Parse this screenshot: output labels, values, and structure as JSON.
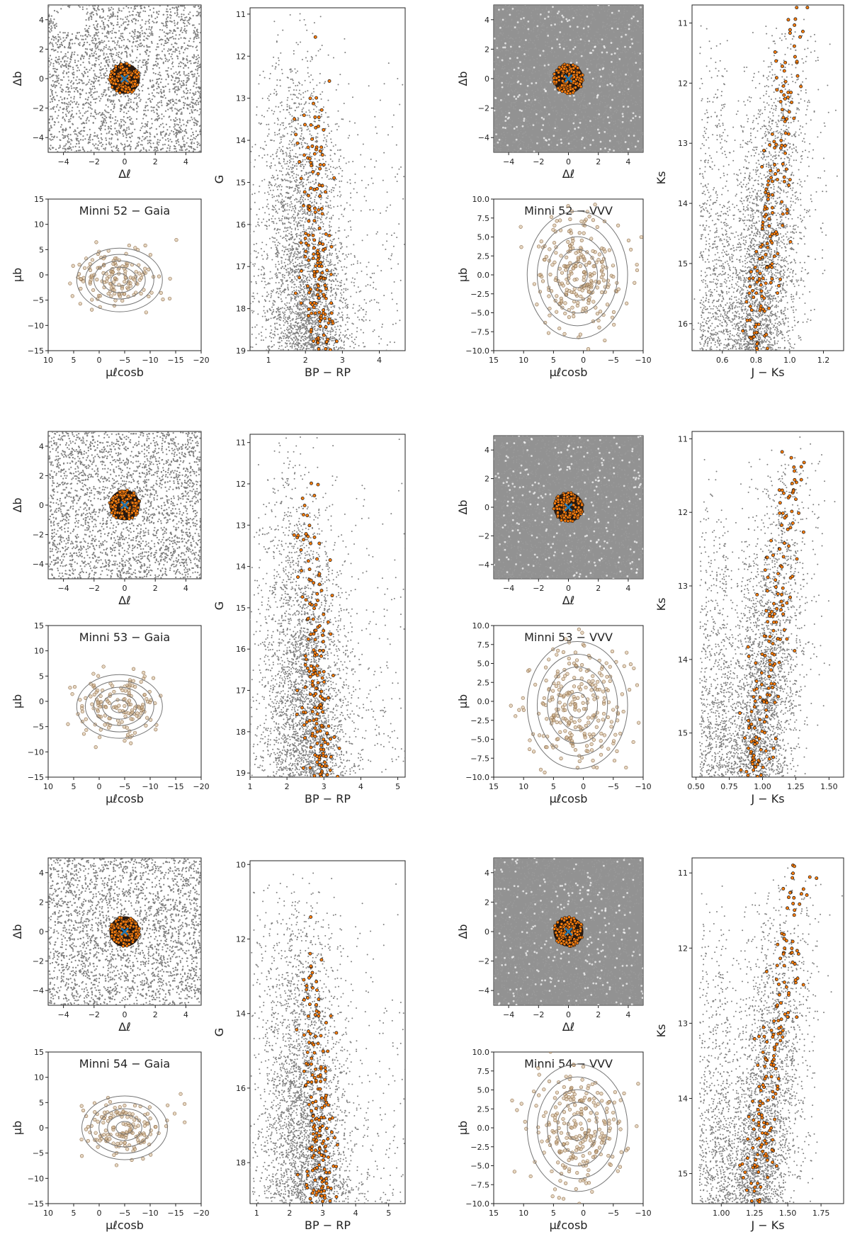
{
  "figure": {
    "colors": {
      "field": "#7f7f7f",
      "member_fill": "#ff7f0e",
      "member_edge": "#111111",
      "pm_member": "#d2b48c",
      "center": "#1f77b4",
      "contour": "#777777",
      "frame": "#222222"
    }
  },
  "chart_data": [
    {
      "type": "scatter",
      "name": "spatial-gaia-52",
      "title": "",
      "xlabel": "Δℓ",
      "ylabel": "Δb",
      "xlim": [
        -5,
        5
      ],
      "ylim": [
        -5,
        5
      ],
      "xticks": [
        -4,
        -2,
        0,
        2,
        4
      ],
      "yticks": [
        -4,
        -2,
        0,
        2,
        4
      ],
      "field_density": "sparse",
      "member_radius": 1.0,
      "center": [
        0,
        0
      ]
    },
    {
      "type": "scatter",
      "name": "pm-gaia-52",
      "title": "Minni 52 − Gaia",
      "xlabel": "μℓcosb",
      "ylabel": "μb",
      "xlim": [
        10,
        -20
      ],
      "ylim": [
        -15,
        15
      ],
      "xticks": [
        10,
        5,
        0,
        -5,
        -10,
        -15,
        -20
      ],
      "yticks": [
        -15,
        -10,
        -5,
        0,
        5,
        10,
        15
      ],
      "centroid": [
        -4,
        -1
      ],
      "spread": [
        4,
        3
      ]
    },
    {
      "type": "scatter",
      "name": "cmd-gaia-52",
      "title": "",
      "xlabel": "BP − RP",
      "ylabel": "G",
      "xlim": [
        0.5,
        4.7
      ],
      "ylim": [
        19,
        10.85
      ],
      "xticks": [
        1,
        2,
        3,
        4
      ],
      "yticks": [
        11,
        12,
        13,
        14,
        15,
        16,
        17,
        18,
        19
      ]
    },
    {
      "type": "scatter",
      "name": "spatial-vvv-52",
      "title": "",
      "xlabel": "Δℓ",
      "ylabel": "Δb",
      "xlim": [
        -5,
        5
      ],
      "ylim": [
        -5,
        5
      ],
      "xticks": [
        -4,
        -2,
        0,
        2,
        4
      ],
      "yticks": [
        -4,
        -2,
        0,
        2,
        4
      ],
      "field_density": "dense",
      "member_radius": 1.0,
      "center": [
        0,
        0
      ]
    },
    {
      "type": "scatter",
      "name": "pm-vvv-52",
      "title": "Minni 52 − VVV",
      "xlabel": "μℓcosb",
      "ylabel": "μb",
      "xlim": [
        15,
        -10
      ],
      "ylim": [
        -10,
        10
      ],
      "xticks": [
        15,
        10,
        5,
        0,
        -5,
        -10
      ],
      "yticks": [
        -10.0,
        -7.5,
        -5.0,
        -2.5,
        0.0,
        2.5,
        5.0,
        7.5,
        10.0
      ],
      "centroid": [
        1,
        0
      ],
      "spread": [
        4,
        4
      ]
    },
    {
      "type": "scatter",
      "name": "cmd-vvv-52",
      "title": "",
      "xlabel": "J − Ks",
      "ylabel": "Ks",
      "xlim": [
        0.42,
        1.32
      ],
      "ylim": [
        16.45,
        10.7
      ],
      "xticks": [
        0.6,
        0.8,
        1.0,
        1.2
      ],
      "yticks": [
        11,
        12,
        13,
        14,
        15,
        16
      ]
    },
    {
      "type": "scatter",
      "name": "spatial-gaia-53",
      "title": "",
      "xlabel": "Δℓ",
      "ylabel": "Δb",
      "xlim": [
        -5,
        5
      ],
      "ylim": [
        -5,
        5
      ],
      "xticks": [
        -4,
        -2,
        0,
        2,
        4
      ],
      "yticks": [
        -4,
        -2,
        0,
        2,
        4
      ],
      "field_density": "sparse",
      "member_radius": 1.0,
      "center": [
        0,
        0
      ]
    },
    {
      "type": "scatter",
      "name": "pm-gaia-53",
      "title": "Minni 53 − Gaia",
      "xlabel": "μℓcosb",
      "ylabel": "μb",
      "xlim": [
        10,
        -20
      ],
      "ylim": [
        -15,
        15
      ],
      "xticks": [
        10,
        5,
        0,
        -5,
        -10,
        -15,
        -20
      ],
      "yticks": [
        -15,
        -10,
        -5,
        0,
        5,
        10,
        15
      ],
      "centroid": [
        -4,
        -1
      ],
      "spread": [
        4,
        3
      ]
    },
    {
      "type": "scatter",
      "name": "cmd-gaia-53",
      "title": "",
      "xlabel": "BP − RP",
      "ylabel": "G",
      "xlim": [
        1.0,
        5.2
      ],
      "ylim": [
        19.1,
        10.8
      ],
      "xticks": [
        1,
        2,
        3,
        4,
        5
      ],
      "yticks": [
        11,
        12,
        13,
        14,
        15,
        16,
        17,
        18,
        19
      ]
    },
    {
      "type": "scatter",
      "name": "spatial-vvv-53",
      "title": "",
      "xlabel": "Δℓ",
      "ylabel": "Δb",
      "xlim": [
        -5,
        5
      ],
      "ylim": [
        -5,
        5
      ],
      "xticks": [
        -4,
        -2,
        0,
        2,
        4
      ],
      "yticks": [
        -4,
        -2,
        0,
        2,
        4
      ],
      "field_density": "dense",
      "member_radius": 1.0,
      "center": [
        0,
        0
      ]
    },
    {
      "type": "scatter",
      "name": "pm-vvv-53",
      "title": "Minni 53 − VVV",
      "xlabel": "μℓcosb",
      "ylabel": "μb",
      "xlim": [
        15,
        -10
      ],
      "ylim": [
        -10,
        10
      ],
      "xticks": [
        15,
        10,
        5,
        0,
        -5,
        -10
      ],
      "yticks": [
        -10.0,
        -7.5,
        -5.0,
        -2.5,
        0.0,
        2.5,
        5.0,
        7.5,
        10.0
      ],
      "centroid": [
        1,
        -0.5
      ],
      "spread": [
        4,
        4
      ]
    },
    {
      "type": "scatter",
      "name": "cmd-vvv-53",
      "title": "",
      "xlabel": "J − Ks",
      "ylabel": "Ks",
      "xlim": [
        0.47,
        1.61
      ],
      "ylim": [
        15.6,
        10.9
      ],
      "xticks": [
        0.5,
        0.75,
        1.0,
        1.25,
        1.5
      ],
      "yticks": [
        11,
        12,
        13,
        14,
        15
      ]
    },
    {
      "type": "scatter",
      "name": "spatial-gaia-54",
      "title": "",
      "xlabel": "Δℓ",
      "ylabel": "Δb",
      "xlim": [
        -5,
        5
      ],
      "ylim": [
        -5,
        5
      ],
      "xticks": [
        -4,
        -2,
        0,
        2,
        4
      ],
      "yticks": [
        -4,
        -2,
        0,
        2,
        4
      ],
      "field_density": "sparse",
      "member_radius": 1.0,
      "center": [
        0,
        0
      ]
    },
    {
      "type": "scatter",
      "name": "pm-gaia-54",
      "title": "Minni 54 − Gaia",
      "xlabel": "μℓcosb",
      "ylabel": "μb",
      "xlim": [
        10,
        -20
      ],
      "ylim": [
        -15,
        15
      ],
      "xticks": [
        10,
        5,
        0,
        -5,
        -10,
        -15,
        -20
      ],
      "yticks": [
        -15,
        -10,
        -5,
        0,
        5,
        10,
        15
      ],
      "centroid": [
        -5,
        0
      ],
      "spread": [
        4,
        3
      ]
    },
    {
      "type": "scatter",
      "name": "cmd-gaia-54",
      "title": "",
      "xlabel": "BP − RP",
      "ylabel": "G",
      "xlim": [
        0.8,
        5.5
      ],
      "ylim": [
        19.1,
        9.9
      ],
      "xticks": [
        1,
        2,
        3,
        4,
        5
      ],
      "yticks": [
        10,
        12,
        14,
        16,
        18
      ]
    },
    {
      "type": "scatter",
      "name": "spatial-vvv-54",
      "title": "",
      "xlabel": "Δℓ",
      "ylabel": "Δb",
      "xlim": [
        -5,
        5
      ],
      "ylim": [
        -5,
        5
      ],
      "xticks": [
        -4,
        -2,
        0,
        2,
        4
      ],
      "yticks": [
        -4,
        -2,
        0,
        2,
        4
      ],
      "field_density": "dense",
      "member_radius": 1.0,
      "center": [
        0,
        0
      ]
    },
    {
      "type": "scatter",
      "name": "pm-vvv-54",
      "title": "Minni 54 − VVV",
      "xlabel": "μℓcosb",
      "ylabel": "μb",
      "xlim": [
        15,
        -10
      ],
      "ylim": [
        -10,
        10
      ],
      "xticks": [
        15,
        10,
        5,
        0,
        -5,
        -10
      ],
      "yticks": [
        -10.0,
        -7.5,
        -5.0,
        -2.5,
        0.0,
        2.5,
        5.0,
        7.5,
        10.0
      ],
      "centroid": [
        1,
        0
      ],
      "spread": [
        4,
        4
      ]
    },
    {
      "type": "scatter",
      "name": "cmd-vvv-54",
      "title": "",
      "xlabel": "J − Ks",
      "ylabel": "Ks",
      "xlim": [
        0.78,
        1.92
      ],
      "ylim": [
        15.4,
        10.8
      ],
      "xticks": [
        1.0,
        1.25,
        1.5,
        1.75
      ],
      "yticks": [
        11,
        12,
        13,
        14,
        15
      ]
    }
  ]
}
